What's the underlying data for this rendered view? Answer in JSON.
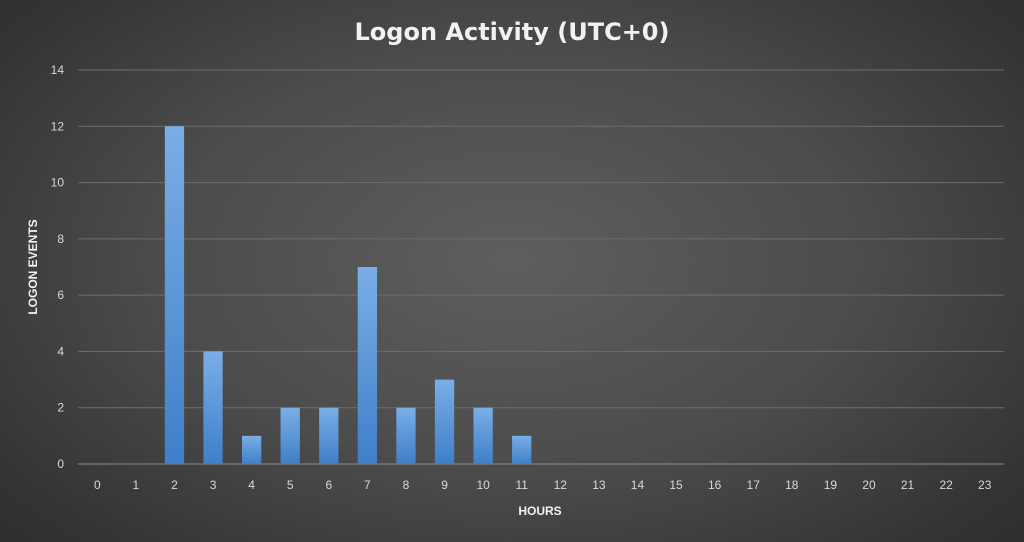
{
  "chart_data": {
    "type": "bar",
    "title": "Logon Activity (UTC+0)",
    "xlabel": "HOURS",
    "ylabel": "LOGON EVENTS",
    "categories": [
      "0",
      "1",
      "2",
      "3",
      "4",
      "5",
      "6",
      "7",
      "8",
      "9",
      "10",
      "11",
      "12",
      "13",
      "14",
      "15",
      "16",
      "17",
      "18",
      "19",
      "20",
      "21",
      "22",
      "23"
    ],
    "values": [
      0,
      0,
      12,
      4,
      1,
      2,
      2,
      7,
      2,
      3,
      2,
      1,
      0,
      0,
      0,
      0,
      0,
      0,
      0,
      0,
      0,
      0,
      0,
      0
    ],
    "ylim": [
      0,
      14
    ],
    "yticks": [
      "0",
      "2",
      "4",
      "6",
      "8",
      "10",
      "12",
      "14"
    ],
    "grid": true,
    "legend": "none",
    "colors": {
      "bar_top": "#7aaee6",
      "bar_bottom": "#3f7fc8",
      "grid": "#6e6e6e"
    }
  }
}
